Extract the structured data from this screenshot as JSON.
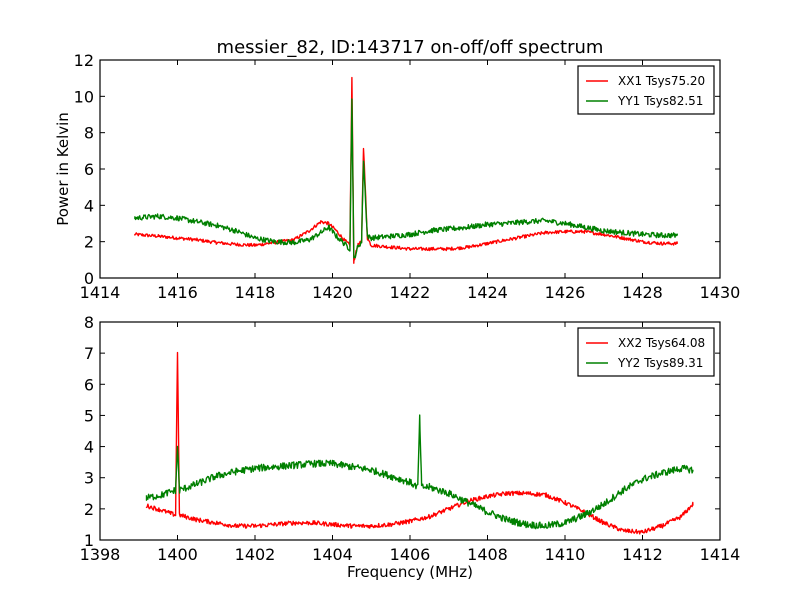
{
  "chart_data": [
    {
      "type": "line",
      "title": "messier_82, ID:143717 on-off/off spectrum",
      "xlabel": "",
      "ylabel": "Power in Kelvin",
      "xlim": [
        1414,
        1430
      ],
      "ylim": [
        0,
        12
      ],
      "xticks": [
        "1414",
        "1416",
        "1418",
        "1420",
        "1422",
        "1424",
        "1426",
        "1428",
        "1430"
      ],
      "yticks": [
        "0",
        "2",
        "4",
        "6",
        "8",
        "10",
        "12"
      ],
      "legend_position": "top-right",
      "grid": false,
      "series": [
        {
          "name": "XX1 Tsys75.20",
          "color": "#ff0000",
          "x": [
            1414.9,
            1415.5,
            1416.0,
            1416.5,
            1417.0,
            1417.5,
            1418.0,
            1418.5,
            1419.0,
            1419.4,
            1419.7,
            1419.9,
            1420.1,
            1420.3,
            1420.45,
            1420.5,
            1420.55,
            1420.65,
            1420.75,
            1420.8,
            1420.9,
            1421.0,
            1421.5,
            1422.0,
            1422.5,
            1423.0,
            1423.5,
            1424.0,
            1424.5,
            1425.0,
            1425.5,
            1426.0,
            1426.5,
            1427.0,
            1427.5,
            1428.0,
            1428.5,
            1428.9
          ],
          "y": [
            2.4,
            2.3,
            2.2,
            2.1,
            1.95,
            1.85,
            1.8,
            1.95,
            2.1,
            2.6,
            3.1,
            3.0,
            2.6,
            2.1,
            1.8,
            11.0,
            0.9,
            1.8,
            2.0,
            7.2,
            2.2,
            1.8,
            1.7,
            1.6,
            1.6,
            1.6,
            1.7,
            1.9,
            2.1,
            2.3,
            2.5,
            2.55,
            2.55,
            2.4,
            2.2,
            2.0,
            1.9,
            1.9
          ]
        },
        {
          "name": "YY1 Tsys82.51",
          "color": "#008000",
          "x": [
            1414.9,
            1415.5,
            1416.0,
            1416.5,
            1417.0,
            1417.5,
            1418.0,
            1418.5,
            1419.0,
            1419.4,
            1419.7,
            1419.9,
            1420.1,
            1420.3,
            1420.45,
            1420.5,
            1420.55,
            1420.65,
            1420.75,
            1420.8,
            1420.9,
            1421.0,
            1421.5,
            1422.0,
            1422.5,
            1423.0,
            1423.5,
            1424.0,
            1424.5,
            1425.0,
            1425.5,
            1426.0,
            1426.5,
            1427.0,
            1427.5,
            1428.0,
            1428.5,
            1428.9
          ],
          "y": [
            3.3,
            3.4,
            3.3,
            3.1,
            2.9,
            2.6,
            2.2,
            2.0,
            1.95,
            2.1,
            2.5,
            2.8,
            2.3,
            1.9,
            1.6,
            9.8,
            1.0,
            1.7,
            2.0,
            6.5,
            2.3,
            2.2,
            2.3,
            2.4,
            2.6,
            2.7,
            2.8,
            2.95,
            3.0,
            3.1,
            3.15,
            3.0,
            2.8,
            2.6,
            2.5,
            2.4,
            2.35,
            2.35
          ]
        }
      ]
    },
    {
      "type": "line",
      "title": "",
      "xlabel": "Frequency (MHz)",
      "ylabel": "",
      "xlim": [
        1398,
        1414
      ],
      "ylim": [
        1,
        8
      ],
      "xticks": [
        "1398",
        "1400",
        "1402",
        "1404",
        "1406",
        "1408",
        "1410",
        "1412",
        "1414"
      ],
      "yticks": [
        "1",
        "2",
        "3",
        "4",
        "5",
        "6",
        "7",
        "8"
      ],
      "legend_position": "top-right",
      "grid": false,
      "series": [
        {
          "name": "XX2 Tsys64.08",
          "color": "#ff0000",
          "x": [
            1399.2,
            1399.6,
            1399.95,
            1400.0,
            1400.05,
            1400.5,
            1401.0,
            1401.5,
            1402.0,
            1402.5,
            1403.0,
            1403.5,
            1404.0,
            1404.5,
            1405.0,
            1405.5,
            1406.0,
            1406.5,
            1407.0,
            1407.5,
            1408.0,
            1408.5,
            1409.0,
            1409.5,
            1410.0,
            1410.5,
            1411.0,
            1411.5,
            1412.0,
            1412.5,
            1413.0,
            1413.3
          ],
          "y": [
            2.1,
            1.95,
            1.8,
            7.05,
            1.8,
            1.65,
            1.55,
            1.45,
            1.45,
            1.5,
            1.55,
            1.55,
            1.5,
            1.45,
            1.45,
            1.5,
            1.6,
            1.75,
            2.0,
            2.25,
            2.4,
            2.5,
            2.5,
            2.45,
            2.2,
            1.9,
            1.55,
            1.3,
            1.25,
            1.45,
            1.75,
            2.15
          ]
        },
        {
          "name": "YY2 Tsys89.31",
          "color": "#008000",
          "x": [
            1399.2,
            1399.6,
            1399.95,
            1400.0,
            1400.05,
            1400.5,
            1401.0,
            1401.5,
            1402.0,
            1402.5,
            1403.0,
            1403.5,
            1404.0,
            1404.5,
            1405.0,
            1405.5,
            1406.0,
            1406.2,
            1406.25,
            1406.3,
            1406.5,
            1407.0,
            1407.5,
            1408.0,
            1408.5,
            1409.0,
            1409.5,
            1410.0,
            1410.5,
            1411.0,
            1411.5,
            1412.0,
            1412.5,
            1413.0,
            1413.3
          ],
          "y": [
            2.35,
            2.45,
            2.6,
            4.0,
            2.6,
            2.8,
            3.05,
            3.2,
            3.3,
            3.35,
            3.4,
            3.45,
            3.45,
            3.35,
            3.25,
            3.05,
            2.85,
            2.7,
            4.9,
            2.7,
            2.7,
            2.5,
            2.2,
            1.9,
            1.65,
            1.5,
            1.45,
            1.55,
            1.8,
            2.15,
            2.6,
            2.95,
            3.15,
            3.3,
            3.25
          ]
        }
      ]
    }
  ]
}
